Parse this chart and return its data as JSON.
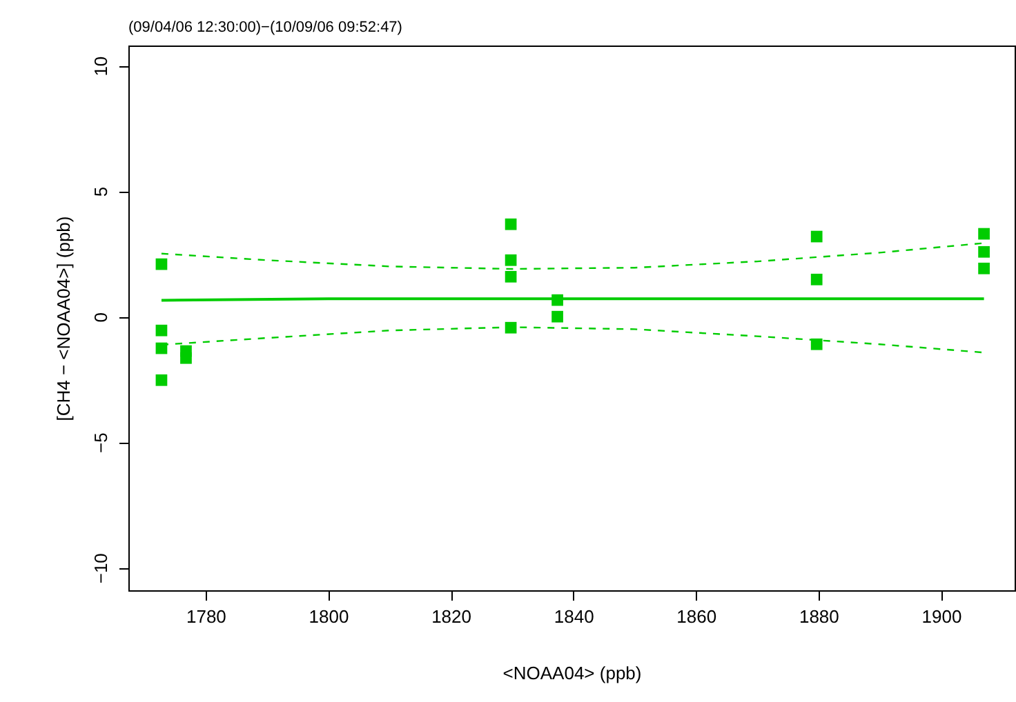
{
  "chart_data": {
    "type": "scatter",
    "title": "(09/04/06 12:30:00)−(10/09/06 09:52:47)",
    "xlabel": "<NOAA04> (ppb)",
    "ylabel": "[CH4 − <NOAA04>] (ppb)",
    "xlim": [
      1767.4,
      1912
    ],
    "ylim": [
      -10.9,
      10.8
    ],
    "xticks": [
      1780,
      1800,
      1820,
      1840,
      1860,
      1880,
      1900
    ],
    "yticks": [
      {
        "value": -10,
        "label": "−10"
      },
      {
        "value": -5,
        "label": "−5"
      },
      0,
      5,
      10
    ],
    "grid": false,
    "series": [
      {
        "marker": "square",
        "color": "#00cc00",
        "x": [
          1772.8,
          1772.8,
          1772.8,
          1772.8,
          1776.8,
          1776.8,
          1829.8,
          1829.8,
          1829.8,
          1829.8,
          1837.4,
          1837.4,
          1879.7,
          1879.7,
          1879.7,
          1907,
          1907,
          1907
        ],
        "values": [
          2.09,
          -0.55,
          -1.26,
          -2.53,
          -1.37,
          -1.65,
          3.68,
          2.25,
          1.59,
          -0.44,
          0.66,
          0,
          3.19,
          1.48,
          -1.1,
          3.3,
          2.58,
          1.92
        ]
      },
      {
        "type": "line",
        "marker": "none",
        "color": "#00cc00",
        "line_style": "solid",
        "x": [
          1772.8,
          1800,
          1907
        ],
        "values": [
          0.65,
          0.71,
          0.71
        ]
      },
      {
        "type": "line",
        "marker": "none",
        "color": "#00cc00",
        "line_style": "dashed",
        "x": [
          1772.8,
          1790,
          1810,
          1830,
          1850,
          1870,
          1890,
          1907
        ],
        "values": [
          2.51,
          2.25,
          2.0,
          1.9,
          1.95,
          2.2,
          2.55,
          2.93
        ]
      },
      {
        "type": "line",
        "marker": "none",
        "color": "#00cc00",
        "line_style": "dashed",
        "x": [
          1772.8,
          1790,
          1810,
          1830,
          1850,
          1870,
          1890,
          1907
        ],
        "values": [
          -1.12,
          -0.85,
          -0.55,
          -0.42,
          -0.5,
          -0.78,
          -1.1,
          -1.43
        ]
      }
    ]
  }
}
